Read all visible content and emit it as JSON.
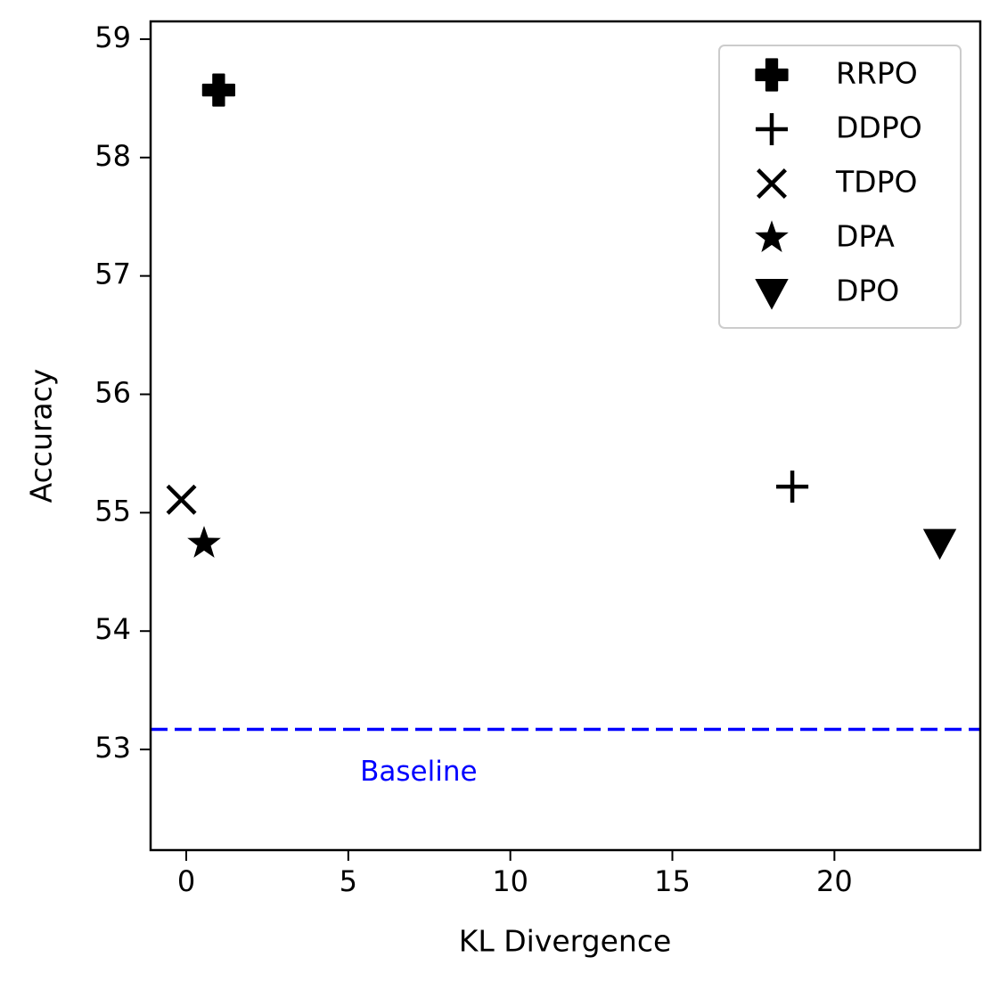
{
  "chart_data": {
    "type": "scatter",
    "title": "",
    "xlabel": "KL Divergence",
    "ylabel": "Accuracy",
    "xlim": [
      -1.1,
      24.5
    ],
    "ylim": [
      52.15,
      59.15
    ],
    "x_ticks": [
      0,
      5,
      10,
      15,
      20
    ],
    "y_ticks": [
      53,
      54,
      55,
      56,
      57,
      58,
      59
    ],
    "grid": false,
    "legend_position": "top-right",
    "series": [
      {
        "name": "RRPO",
        "marker": "plus-filled",
        "x": [
          1.0
        ],
        "y": [
          58.57
        ]
      },
      {
        "name": "DDPO",
        "marker": "plus",
        "x": [
          18.7
        ],
        "y": [
          55.22
        ]
      },
      {
        "name": "TDPO",
        "marker": "x",
        "x": [
          -0.15
        ],
        "y": [
          55.11
        ]
      },
      {
        "name": "DPA",
        "marker": "star",
        "x": [
          0.55
        ],
        "y": [
          54.74
        ]
      },
      {
        "name": "DPO",
        "marker": "triangle-down",
        "x": [
          23.25
        ],
        "y": [
          54.75
        ]
      }
    ],
    "baseline": {
      "label": "Baseline",
      "y": 53.17,
      "color": "#0000ff",
      "label_x": 5.0,
      "label_y": 52.8
    },
    "marker_color": "#000000"
  }
}
